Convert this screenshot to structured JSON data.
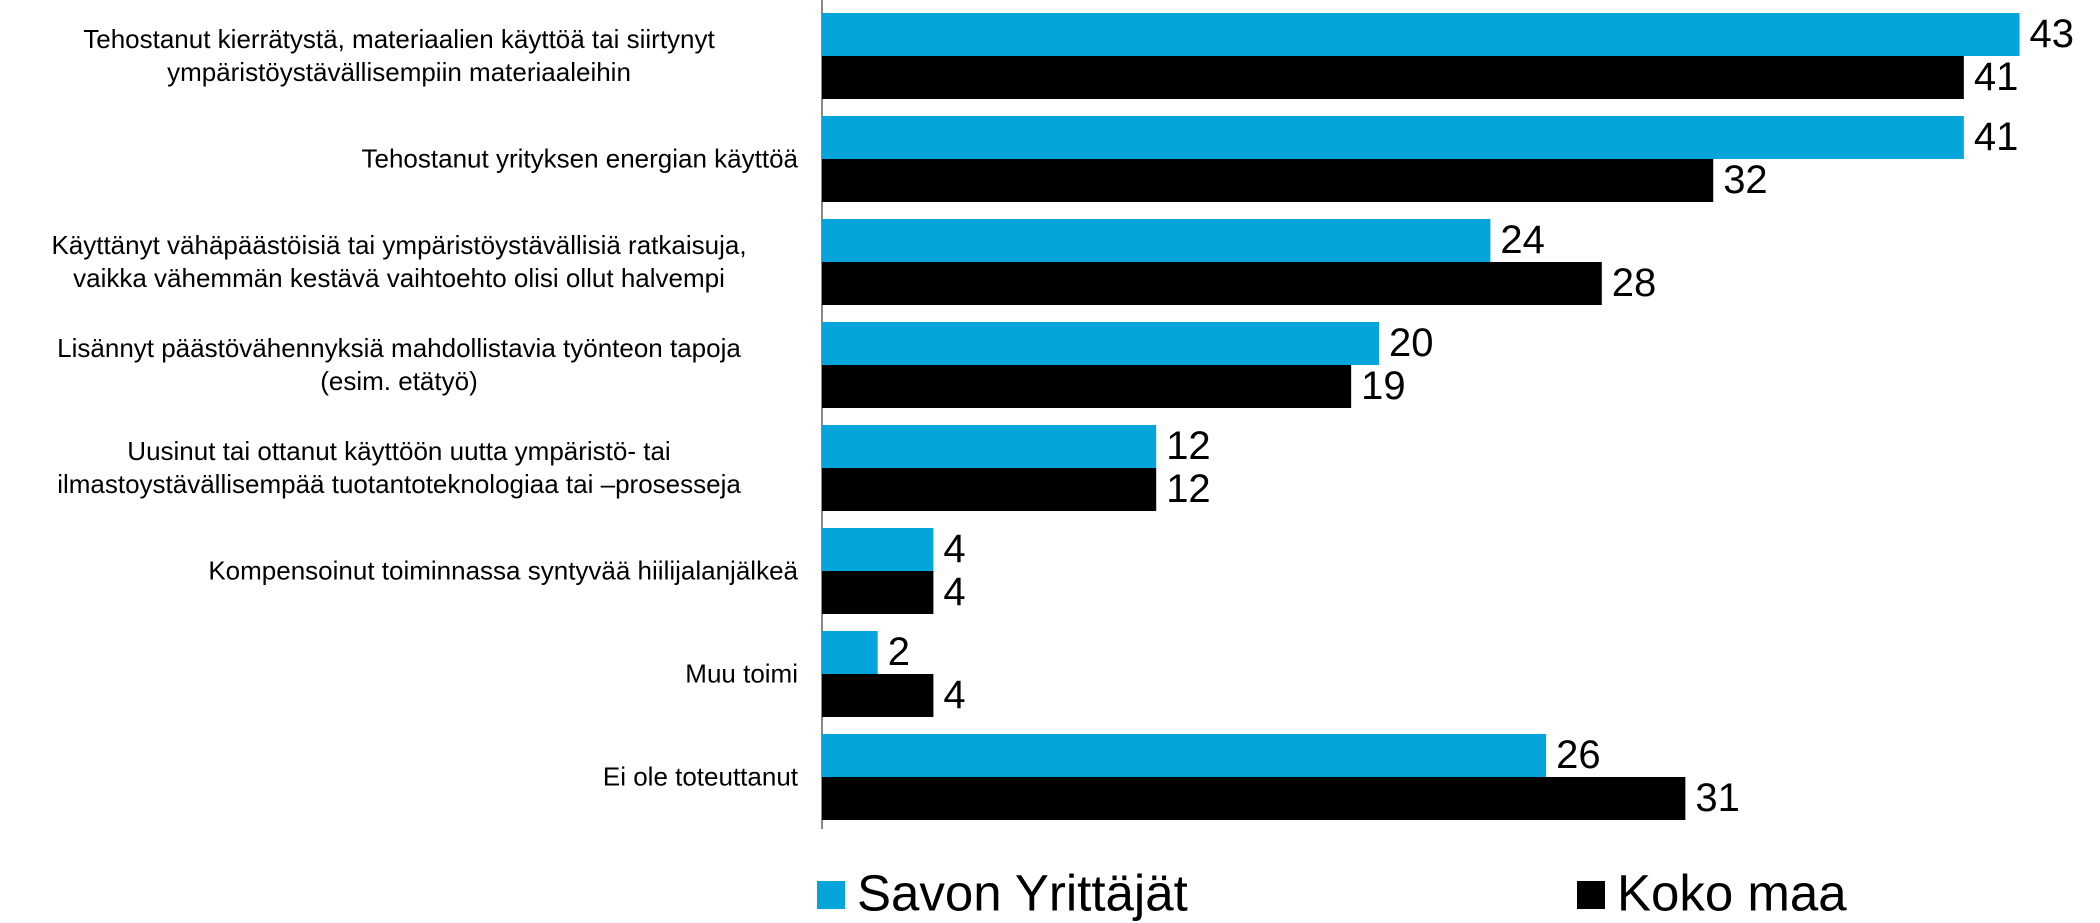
{
  "chart_data": {
    "type": "bar",
    "orientation": "horizontal",
    "categories": [
      "Tehostanut kierrätystä, materiaalien käyttöä tai siirtynyt\nympäristöystävällisempiin materiaaleihin",
      "Tehostanut yrityksen energian käyttöä",
      "Käyttänyt vähäpäästöisiä tai ympäristöystävällisiä ratkaisuja,\nvaikka vähemmän kestävä vaihtoehto olisi ollut halvempi",
      "Lisännyt päästövähennyksiä mahdollistavia työnteon tapoja\n(esim. etätyö)",
      "Uusinut tai ottanut käyttöön uutta ympäristö- tai\nilmastoystävällisempää tuotantoteknologiaa tai –prosesseja",
      "Kompensoinut toiminnassa syntyvää hiilijalanjälkeä",
      "Muu toimi",
      "Ei ole toteuttanut"
    ],
    "series": [
      {
        "name": "Savon Yrittäjät",
        "color": "#05a5db",
        "values": [
          43,
          41,
          24,
          20,
          12,
          4,
          2,
          26
        ]
      },
      {
        "name": "Koko maa",
        "color": "#000000",
        "values": [
          41,
          32,
          28,
          19,
          12,
          4,
          4,
          31
        ]
      }
    ],
    "xlim": [
      0,
      45
    ],
    "legend": "bottom"
  }
}
